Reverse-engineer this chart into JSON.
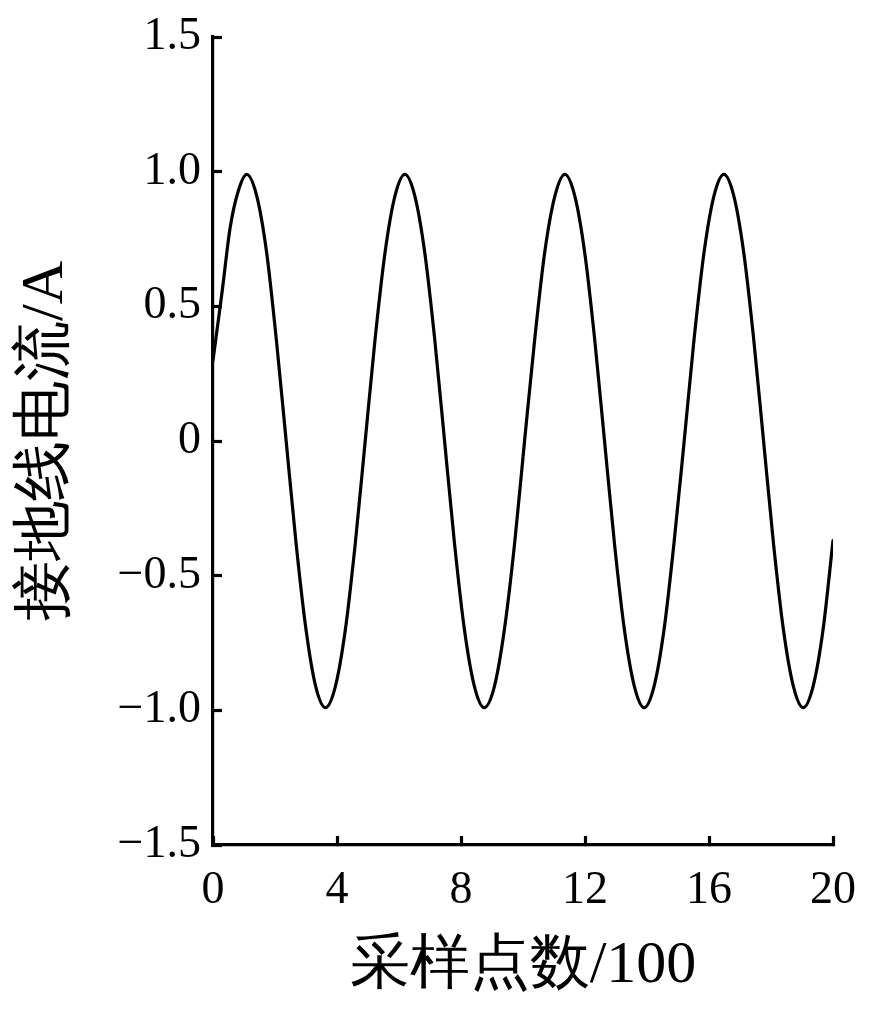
{
  "chart_data": {
    "type": "line",
    "xlabel": "采样点数/100",
    "ylabel": "接地线电流/A",
    "color": "#000000",
    "x": [
      0,
      0.3,
      0.55,
      0.82,
      1.09,
      1.41,
      1.73,
      2.04,
      2.36,
      2.68,
      3.0,
      3.31,
      3.63,
      3.95,
      4.27,
      4.59,
      4.91,
      5.23,
      5.55,
      5.87,
      6.19,
      6.51,
      6.83,
      7.15,
      7.47,
      7.79,
      8.11,
      8.43,
      8.75,
      9.08,
      9.4,
      9.73,
      10.05,
      10.38,
      10.7,
      11.03,
      11.35,
      11.67,
      11.99,
      12.31,
      12.63,
      12.95,
      13.27,
      13.59,
      13.91,
      14.23,
      14.55,
      14.87,
      15.2,
      15.52,
      15.84,
      16.16,
      16.48,
      16.8,
      17.12,
      17.44,
      17.76,
      18.08,
      18.4,
      18.72,
      19.04,
      19.36,
      19.68,
      20
    ],
    "values": [
      0.3,
      0.56,
      0.79,
      0.93,
      0.99,
      0.91,
      0.7,
      0.38,
      0,
      -0.38,
      -0.7,
      -0.91,
      -0.99,
      -0.91,
      -0.7,
      -0.38,
      0,
      0.38,
      0.7,
      0.91,
      0.99,
      0.91,
      0.7,
      0.38,
      0,
      -0.38,
      -0.7,
      -0.91,
      -0.99,
      -0.91,
      -0.7,
      -0.38,
      0,
      0.38,
      0.7,
      0.91,
      0.99,
      0.91,
      0.7,
      0.38,
      0,
      -0.38,
      -0.7,
      -0.91,
      -0.99,
      -0.91,
      -0.7,
      -0.38,
      0,
      0.38,
      0.7,
      0.91,
      0.99,
      0.91,
      0.7,
      0.38,
      0,
      -0.38,
      -0.7,
      -0.91,
      -0.99,
      -0.91,
      -0.7,
      -0.37
    ],
    "xlim": [
      0,
      20
    ],
    "ylim": [
      -1.5,
      1.5
    ],
    "xticks": [
      0,
      4,
      8,
      12,
      16,
      20
    ],
    "yticks": [
      {
        "value": -1.5,
        "label": "−1.5"
      },
      {
        "value": -1,
        "label": "−1.0"
      },
      {
        "value": -0.5,
        "label": "−0.5"
      },
      0,
      0.5,
      {
        "value": 1,
        "label": "1.0"
      },
      1.5
    ]
  }
}
